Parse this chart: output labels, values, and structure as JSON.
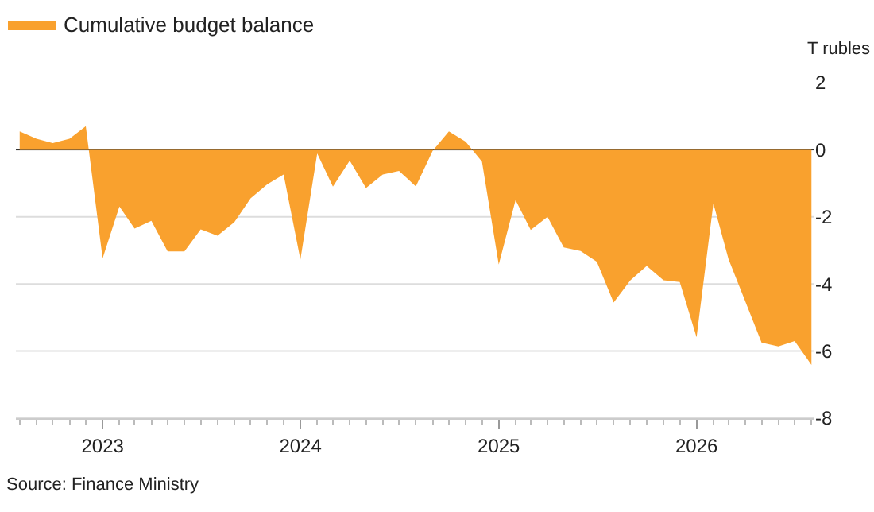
{
  "chart_data": {
    "type": "area",
    "ylabel": "T rubles",
    "x": [
      "2022-08",
      "2022-09",
      "2022-10",
      "2022-11",
      "2022-12",
      "2023-01",
      "2023-02",
      "2023-03",
      "2023-04",
      "2023-05",
      "2023-06",
      "2023-07",
      "2023-08",
      "2023-09",
      "2023-10",
      "2023-11",
      "2023-12",
      "2024-01",
      "2024-02",
      "2024-03",
      "2024-04",
      "2024-05",
      "2024-06",
      "2024-07",
      "2024-08",
      "2024-09",
      "2024-10",
      "2024-11",
      "2024-12",
      "2025-01",
      "2025-02",
      "2025-03",
      "2025-04",
      "2025-05",
      "2025-06",
      "2025-07",
      "2025-08",
      "2025-09",
      "2025-10",
      "2025-11",
      "2025-12",
      "2026-01",
      "2026-02",
      "2026-03",
      "2026-04",
      "2026-05",
      "2026-06",
      "2026-07",
      "2026-08"
    ],
    "series": [
      {
        "name": "Cumulative budget balance",
        "color": "#f9a12e",
        "values": [
          0.55,
          0.33,
          0.2,
          0.33,
          0.7,
          -3.24,
          -1.69,
          -2.35,
          -2.12,
          -3.03,
          -3.03,
          -2.37,
          -2.56,
          -2.16,
          -1.45,
          -1.03,
          -0.74,
          -3.27,
          -0.11,
          -1.1,
          -0.32,
          -1.14,
          -0.74,
          -0.63,
          -1.09,
          -0.03,
          0.55,
          0.24,
          -0.35,
          -3.42,
          -1.5,
          -2.39,
          -2.0,
          -2.91,
          -3.02,
          -3.34,
          -4.55,
          -3.89,
          -3.46,
          -3.89,
          -3.94,
          -5.59,
          -1.6,
          -3.26,
          -4.52,
          -5.75,
          -5.86,
          -5.7,
          -6.41
        ]
      }
    ],
    "xlim": [
      "2022-07-25",
      "2026-08-05"
    ],
    "xticks": [
      {
        "value": "2023-01-01",
        "label": "2023"
      },
      {
        "value": "2024-01-01",
        "label": "2024"
      },
      {
        "value": "2025-01-01",
        "label": "2025"
      },
      {
        "value": "2026-01-01",
        "label": "2026"
      }
    ],
    "ylim": [
      -8,
      2
    ],
    "yticks": [
      2,
      0,
      -2,
      -4,
      -6,
      -8
    ],
    "grid": "y",
    "legend": "top left",
    "annotations": [
      "Source: Finance Ministry"
    ]
  }
}
